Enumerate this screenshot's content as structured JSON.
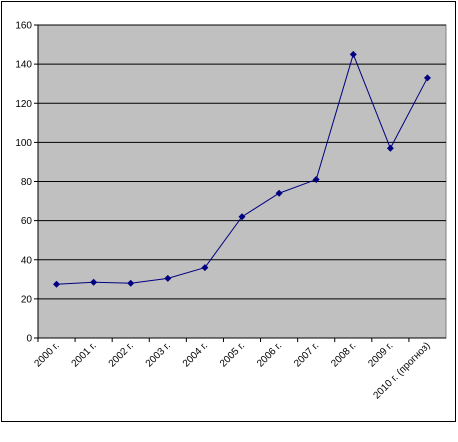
{
  "chart_data": {
    "type": "line",
    "categories": [
      "2000 г.",
      "2001 г.",
      "2002 г.",
      "2003 г.",
      "2004 г.",
      "2005 г.",
      "2006 г.",
      "2007 г.",
      "2008 г.",
      "2009 г.",
      "2010 г. (прогноз)"
    ],
    "values": [
      27.5,
      28.5,
      28,
      30.5,
      36,
      62,
      74,
      81,
      145,
      97,
      133
    ],
    "color": "#000080",
    "ylim": [
      0,
      160
    ],
    "yticks": [
      0,
      20,
      40,
      60,
      80,
      100,
      120,
      140,
      160
    ],
    "grid": true
  }
}
